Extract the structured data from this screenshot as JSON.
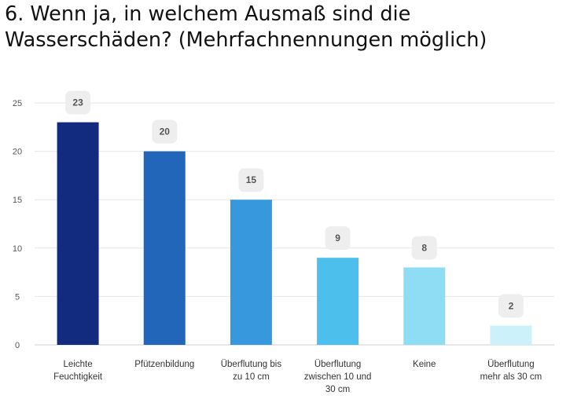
{
  "title": "6. Wenn ja, in welchem Ausmaß sind die Wasserschäden? (Mehrfachnennungen möglich)",
  "chart_data": {
    "type": "bar",
    "title": "6. Wenn ja, in welchem Ausmaß sind die Wasserschäden? (Mehrfachnennungen möglich)",
    "categories": [
      [
        "Leichte",
        "Feuchtigkeit"
      ],
      [
        "Pfützenbildung"
      ],
      [
        "Überflutung bis",
        "zu 10 cm"
      ],
      [
        "Überflutung",
        "zwischen 10 und",
        "30 cm"
      ],
      [
        "Keine"
      ],
      [
        "Überflutung",
        "mehr als 30 cm"
      ]
    ],
    "values": [
      23,
      20,
      15,
      9,
      8,
      2
    ],
    "colors": [
      "#122b7f",
      "#2166b8",
      "#3898de",
      "#4cbfec",
      "#8fdcf5",
      "#cdf1fb"
    ],
    "ylim": [
      0,
      25
    ],
    "yticks": [
      0,
      5,
      10,
      15,
      20,
      25
    ],
    "grid": true,
    "legend": "none"
  }
}
